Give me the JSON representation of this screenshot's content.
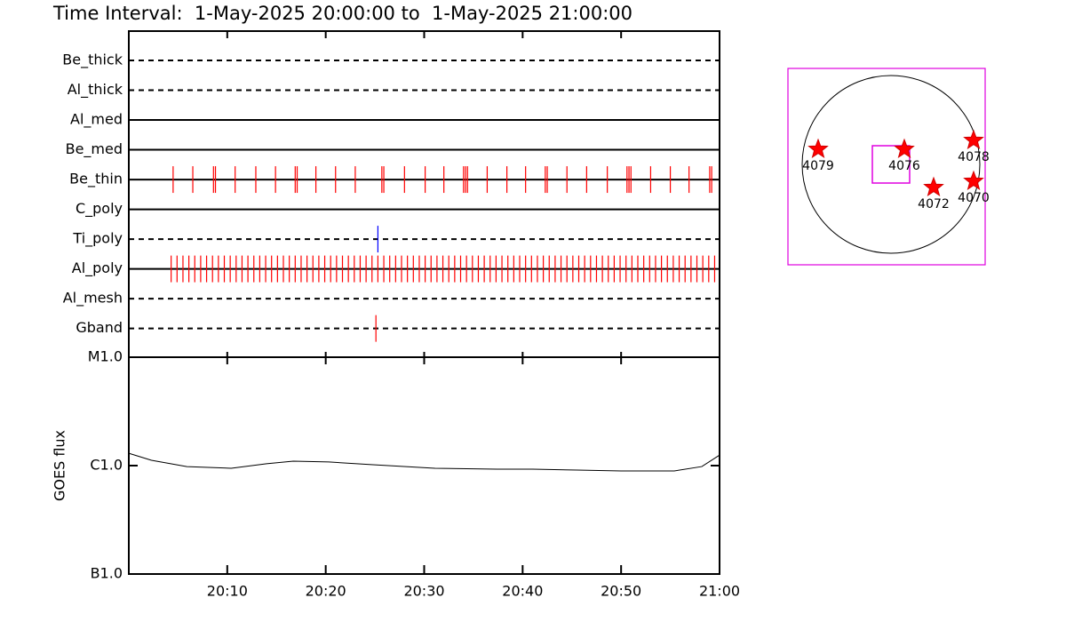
{
  "title": "Time Interval:  1-May-2025 20:00:00 to  1-May-2025 21:00:00",
  "chart_data": [
    {
      "type": "timeline",
      "xlim": [
        0,
        60
      ],
      "rows": [
        {
          "name": "Be_thick",
          "style": "dashed",
          "color": "#ff0000",
          "events": []
        },
        {
          "name": "Al_thick",
          "style": "dashed",
          "color": "#ff0000",
          "events": []
        },
        {
          "name": "Al_med",
          "style": "solid",
          "color": "#ff0000",
          "events": []
        },
        {
          "name": "Be_med",
          "style": "solid",
          "color": "#ff0000",
          "events": []
        },
        {
          "name": "Be_thin",
          "style": "solid",
          "color": "#ff0000",
          "events": [
            4.5,
            6.5,
            8.6,
            8.8,
            10.8,
            12.9,
            14.9,
            16.9,
            17.1,
            19.0,
            21.0,
            23.0,
            25.7,
            25.9,
            28.0,
            30.1,
            32.0,
            34.0,
            34.2,
            34.4,
            36.4,
            38.4,
            40.3,
            42.3,
            42.5,
            44.5,
            46.5,
            48.6,
            50.6,
            50.8,
            51.0,
            53.0,
            55.0,
            56.9,
            59.0,
            59.2
          ]
        },
        {
          "name": "C_poly",
          "style": "solid",
          "color": "#ff0000",
          "events": []
        },
        {
          "name": "Ti_poly",
          "style": "dashed",
          "color": "#0000ff",
          "events": [
            25.3
          ]
        },
        {
          "name": "Al_poly",
          "style": "solid",
          "color": "#ff0000",
          "events": [
            4.3,
            4.9,
            5.5,
            6.1,
            6.7,
            7.3,
            7.9,
            8.5,
            9.1,
            9.7,
            10.3,
            10.9,
            11.5,
            12.1,
            12.7,
            13.3,
            13.9,
            14.5,
            15.1,
            15.7,
            16.3,
            16.9,
            17.5,
            18.1,
            18.7,
            19.3,
            19.9,
            20.5,
            21.1,
            21.7,
            22.3,
            22.9,
            23.5,
            24.1,
            24.7,
            25.3,
            25.9,
            26.5,
            27.1,
            27.7,
            28.3,
            28.9,
            29.5,
            30.1,
            30.7,
            31.3,
            31.9,
            32.5,
            33.1,
            33.7,
            34.3,
            34.9,
            35.5,
            36.1,
            36.7,
            37.3,
            37.9,
            38.5,
            39.1,
            39.7,
            40.3,
            40.9,
            41.5,
            42.1,
            42.7,
            43.3,
            43.9,
            44.5,
            45.1,
            45.7,
            46.3,
            46.9,
            47.5,
            48.1,
            48.7,
            49.3,
            49.9,
            50.5,
            51.1,
            51.7,
            52.3,
            52.9,
            53.5,
            54.1,
            54.7,
            55.3,
            55.9,
            56.5,
            57.1,
            57.7,
            58.3,
            58.9,
            59.5
          ]
        },
        {
          "name": "Al_mesh",
          "style": "dashed",
          "color": "#ff0000",
          "events": []
        },
        {
          "name": "Gband",
          "style": "dashed",
          "color": "#ff0000",
          "events": [
            25.1
          ]
        }
      ]
    },
    {
      "type": "line",
      "ylabel": "GOES flux",
      "log_scale": true,
      "color": "#000000",
      "xlim": [
        0,
        60
      ],
      "xticks": [
        {
          "value": 10,
          "label": "20:10"
        },
        {
          "value": 20,
          "label": "20:20"
        },
        {
          "value": 30,
          "label": "20:30"
        },
        {
          "value": 40,
          "label": "20:40"
        },
        {
          "value": 50,
          "label": "20:50"
        },
        {
          "value": 60,
          "label": "21:00"
        }
      ],
      "ylim": [
        1e-07,
        1e-05
      ],
      "yticks": [
        {
          "value": 1e-07,
          "label": "B1.0"
        },
        {
          "value": 1e-06,
          "label": "C1.0"
        },
        {
          "value": 1e-05,
          "label": "M1.0"
        }
      ],
      "x": [
        0,
        2.3,
        5.9,
        10.4,
        14.0,
        16.7,
        20.3,
        24.8,
        31.1,
        37.4,
        41.0,
        45.5,
        50.0,
        55.4,
        58.2,
        60
      ],
      "values": [
        1.3e-06,
        1.12e-06,
        9.8e-07,
        9.45e-07,
        1.04e-06,
        1.1e-06,
        1.08e-06,
        1.02e-06,
        9.45e-07,
        9.27e-07,
        9.27e-07,
        9.1e-07,
        8.93e-07,
        8.93e-07,
        9.8e-07,
        1.25e-06
      ]
    }
  ],
  "map": {
    "regions": [
      "4079",
      "4076",
      "4078",
      "4072",
      "4070"
    ]
  }
}
